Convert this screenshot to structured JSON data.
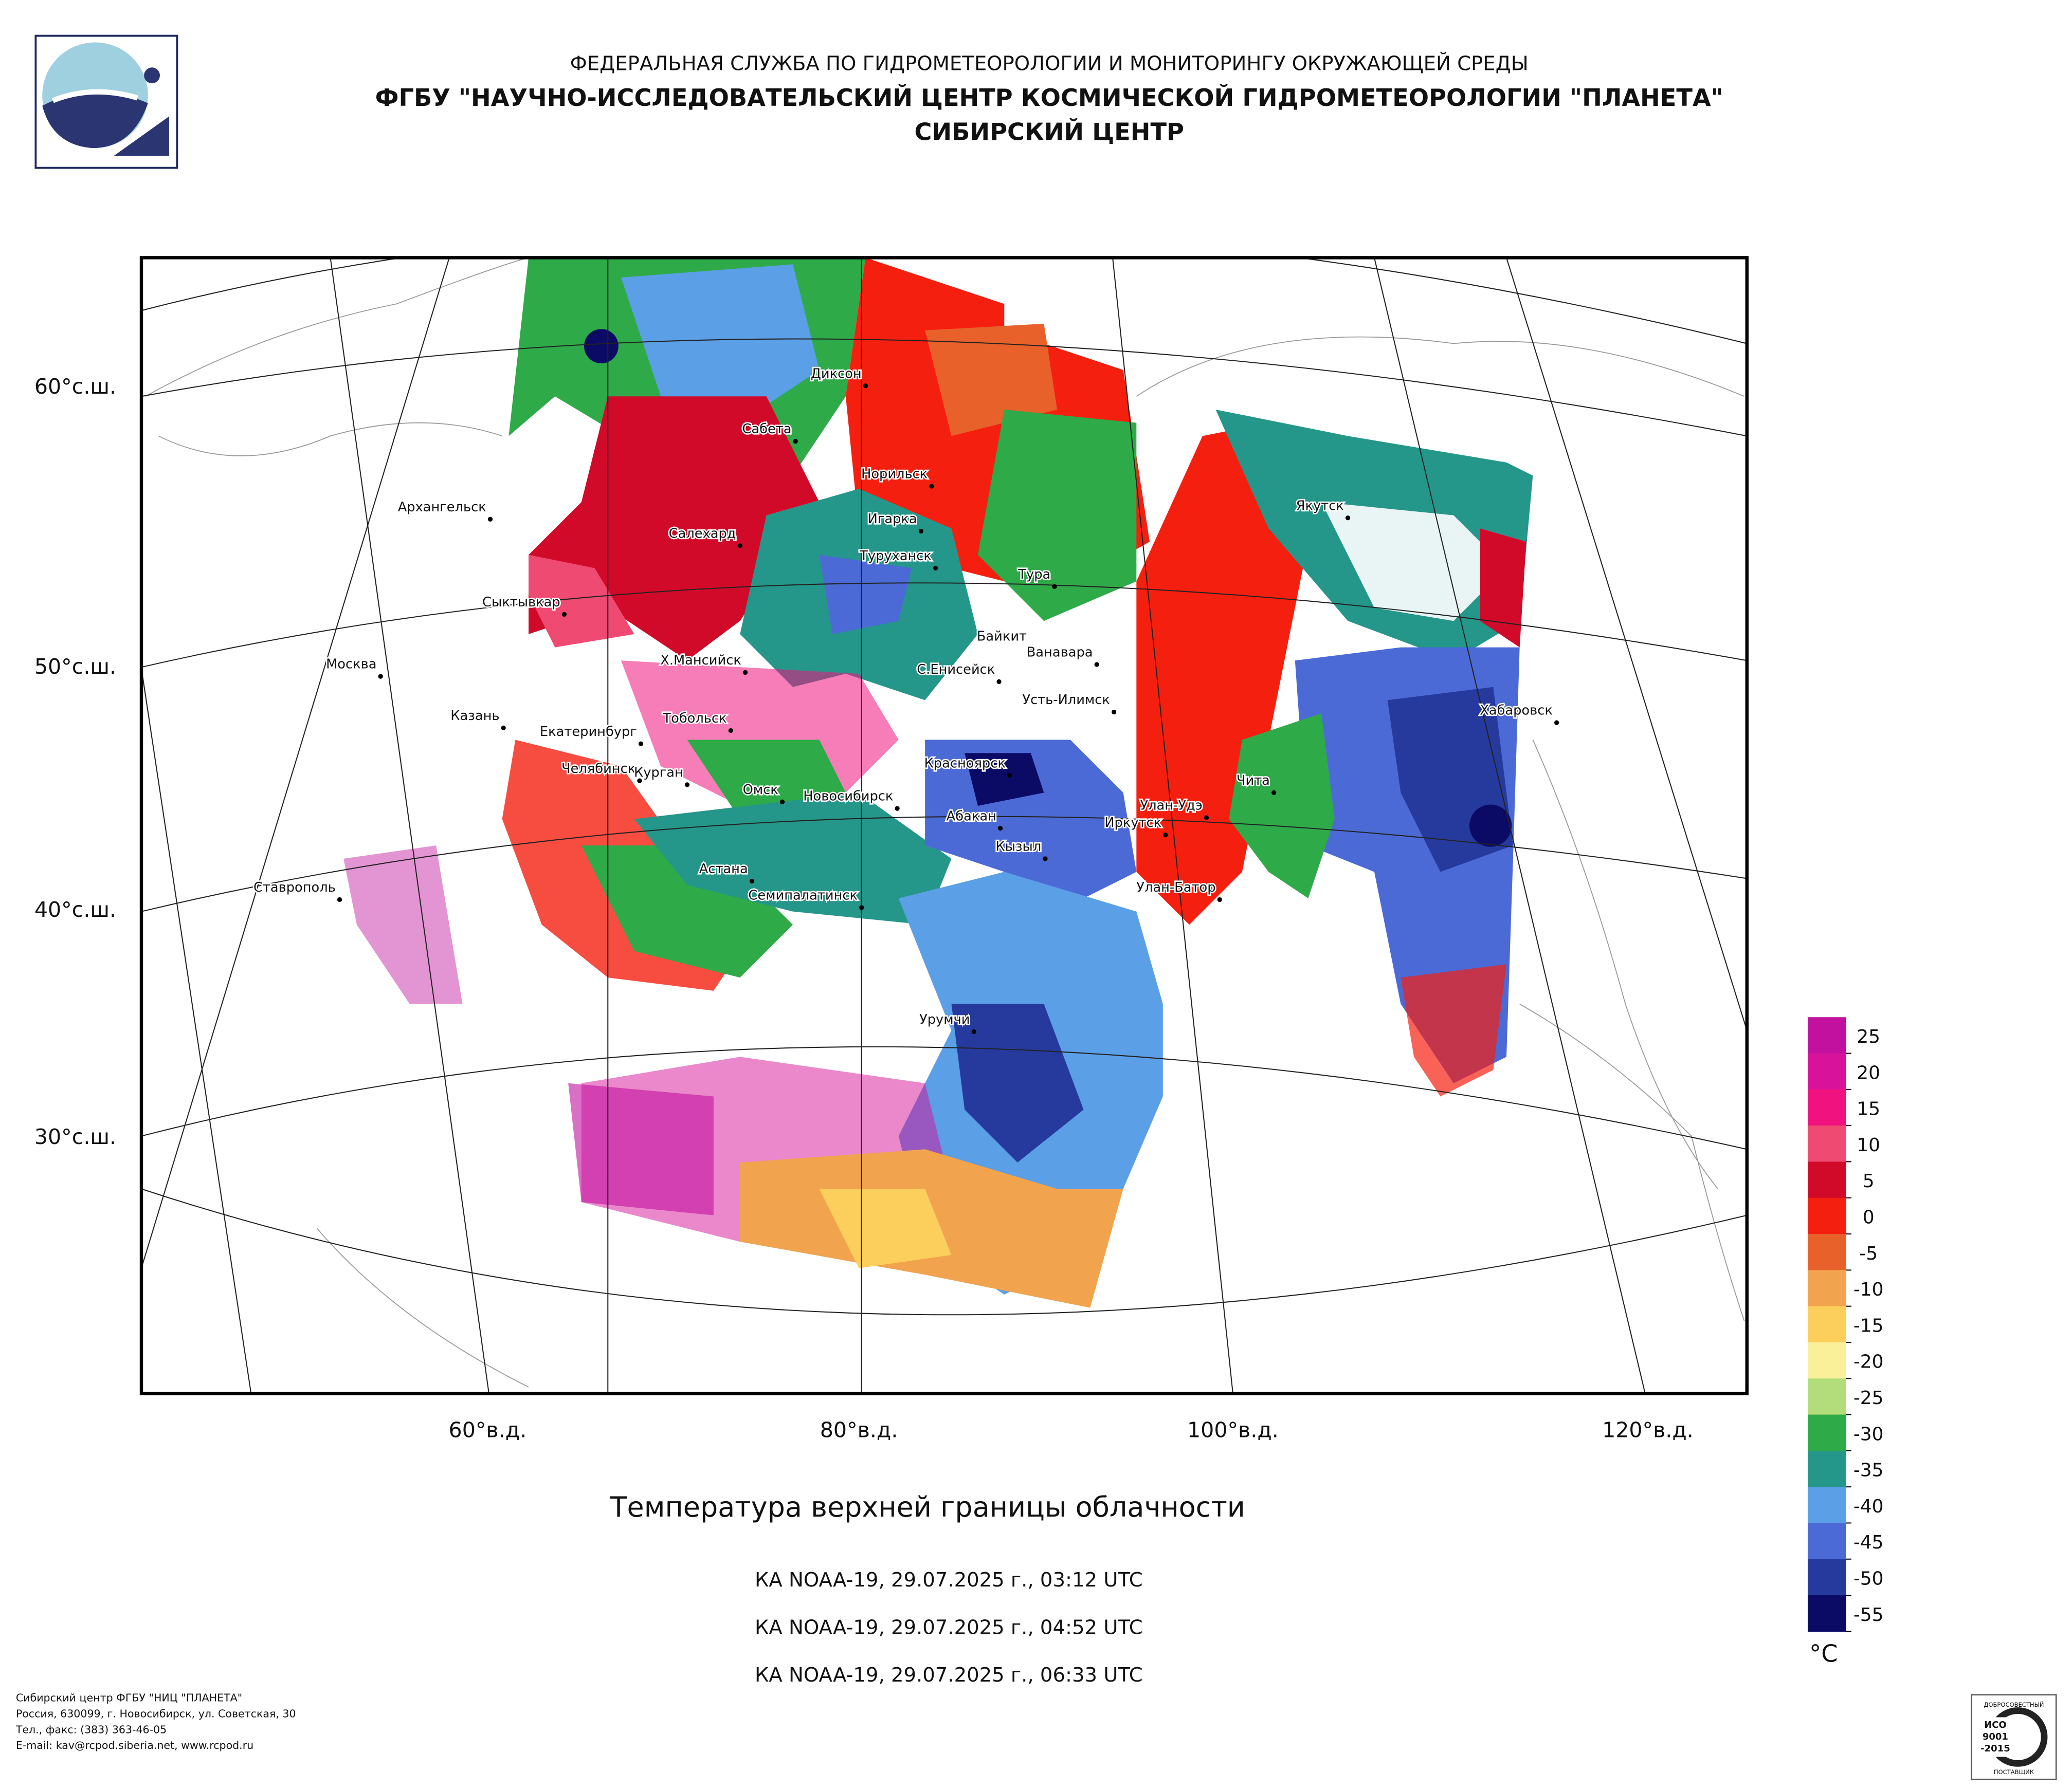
{
  "header": {
    "line1": "ФЕДЕРАЛЬНАЯ СЛУЖБА ПО ГИДРОМЕТЕОРОЛОГИИ И МОНИТОРИНГУ ОКРУЖАЮЩЕЙ СРЕДЫ",
    "line2": "ФГБУ \"НАУЧНО-ИССЛЕДОВАТЕЛЬСКИЙ ЦЕНТР КОСМИЧЕСКОЙ ГИДРОМЕТЕОРОЛОГИИ \"ПЛАНЕТА\"",
    "line3": "СИБИРСКИЙ ЦЕНТР"
  },
  "map": {
    "lat_labels": [
      "60°с.ш.",
      "50°с.ш.",
      "40°с.ш.",
      "30°с.ш."
    ],
    "lon_labels": [
      "60°в.д.",
      "80°в.д.",
      "100°в.д.",
      "120°в.д."
    ],
    "cities": [
      "Диксон",
      "Сабета",
      "Норильск",
      "Архангельск",
      "Игарка",
      "Салехард",
      "Туруханск",
      "Тура",
      "Сыктывкар",
      "Байкит",
      "Ванавара",
      "Москва",
      "Х.Мансийск",
      "С.Енисейск",
      "Усть-Илимск",
      "Якутск",
      "Хабаровск",
      "Казань",
      "Тобольск",
      "Екатеринбург",
      "Красноярск",
      "Челябинск",
      "Курган",
      "Омск",
      "Чита",
      "Новосибирск",
      "Абакан",
      "Улан-Удэ",
      "Иркутск",
      "Кызыл",
      "Астана",
      "Семипалатинск",
      "Улан-Батор",
      "Ставрополь",
      "Урумчи"
    ]
  },
  "legend": {
    "colors": [
      "#c2119e",
      "#d8129a",
      "#f0127e",
      "#ee4a72",
      "#d20a2a",
      "#f51f10",
      "#e8612a",
      "#f2a34e",
      "#fccf5c",
      "#fbf09a",
      "#b3dc7a",
      "#2eaa48",
      "#25978a",
      "#5b9fe6",
      "#4c6ad6",
      "#263a9e",
      "#0b0b66"
    ],
    "ticks": [
      25,
      20,
      15,
      10,
      5,
      0,
      -5,
      -10,
      -15,
      -20,
      -25,
      -30,
      -35,
      -40,
      -45,
      -50,
      -55
    ],
    "unit": "°C"
  },
  "caption": {
    "title": "Температура верхней границы облачности",
    "passes": [
      "КА NOAA-19, 29.07.2025 г., 03:12 UTC",
      "КА NOAA-19, 29.07.2025 г., 04:52 UTC",
      "КА NOAA-19, 29.07.2025 г., 06:33 UTC"
    ]
  },
  "footer": [
    "Сибирский центр ФГБУ \"НИЦ \"ПЛАНЕТА\"",
    "Россия, 630099, г. Новосибирск, ул. Советская, 30",
    "Тел., факс: (383) 363-46-05",
    "E-mail: kav@rcpod.siberia.net, www.rcpod.ru"
  ],
  "stamp": {
    "top": "ДОБРОСОВЕСТНЫЙ",
    "iso": "ИСО",
    "number": "9001",
    "year": "-2015",
    "bottom": "ПОСТАВЩИК"
  }
}
